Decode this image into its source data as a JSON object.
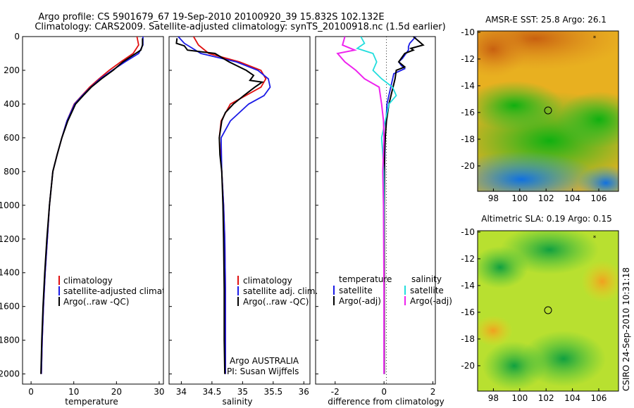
{
  "title": {
    "line1": "Argo profile: CS 5901679_67 19-Sep-2010 20100920_39 15.832S 102.132E",
    "line2": "Climatology: CARS2009. Satellite-adjusted climatology: synTS_20100918.nc (1.5d earlier)"
  },
  "colors": {
    "climatology": "#e01010",
    "satellite": "#1a1ae6",
    "argo": "#000000",
    "sal_satellite": "#22dddd",
    "sal_argo": "#ee22ee"
  },
  "depth_axis": {
    "ticks": [
      0,
      200,
      400,
      600,
      800,
      1000,
      1200,
      1400,
      1600,
      1800,
      2000
    ],
    "range": [
      0,
      2060
    ]
  },
  "temperature_panel": {
    "xlabel": "temperature",
    "xrange": [
      -2,
      31
    ],
    "xticks": [
      0,
      10,
      20,
      30
    ],
    "legend": [
      "climatology",
      "satellite-adjusted climatology",
      "Argo(..raw -QC)"
    ]
  },
  "salinity_panel": {
    "xlabel": "salinity",
    "xrange": [
      33.8,
      36.1
    ],
    "xticks": [
      34,
      34.5,
      35,
      35.5,
      36
    ],
    "legend": [
      "climatology",
      "satellite adj. clim.",
      "Argo(..raw -QC)"
    ],
    "note_line1": "Argo AUSTRALIA",
    "note_line2": "PI: Susan Wijffels"
  },
  "difference_panel": {
    "xlabel": "difference from climatology",
    "xrange": [
      -2.8,
      2.1
    ],
    "xticks": [
      -2,
      0,
      2
    ],
    "legend_head_left": "temperature",
    "legend_head_right": "salinity",
    "legend_left": [
      "satellite",
      "Argo(-adj)"
    ],
    "legend_right": [
      "satellite",
      "Argo(-adj)"
    ]
  },
  "chart_data": [
    {
      "type": "line",
      "title": "",
      "xlabel": "temperature",
      "ylabel": "",
      "xlim": [
        -2,
        31
      ],
      "ylim": [
        2060,
        0
      ],
      "series": [
        {
          "name": "climatology",
          "x": [
            24.8,
            25.2,
            23.9,
            21,
            18.3,
            15.9,
            13.7,
            11.9,
            10.1,
            8.4,
            7.2,
            6.1,
            5.1,
            4.3,
            3.8,
            3.3,
            2.9,
            2.6,
            2.4
          ],
          "y": [
            0,
            50,
            100,
            150,
            200,
            250,
            300,
            350,
            400,
            500,
            600,
            700,
            800,
            1000,
            1200,
            1400,
            1600,
            1800,
            2000
          ]
        },
        {
          "name": "satellite-adjusted climatology",
          "x": [
            26.2,
            26.2,
            25.2,
            22,
            19,
            16.2,
            14,
            12,
            10.2,
            8.4,
            7.2,
            6.1,
            5.1,
            4.3,
            3.8,
            3.3,
            2.9,
            2.6,
            2.4
          ],
          "y": [
            0,
            50,
            100,
            150,
            200,
            250,
            300,
            350,
            400,
            500,
            600,
            700,
            800,
            1000,
            1200,
            1400,
            1600,
            1800,
            2000
          ]
        },
        {
          "name": "Argo(..raw -QC)",
          "x": [
            26.1,
            26.1,
            25.7,
            21.5,
            19.2,
            16.5,
            14.1,
            12.2,
            10.4,
            8.6,
            7.2,
            6.1,
            5.1,
            4.3,
            3.7,
            3.2,
            2.8,
            2.5,
            2.3
          ],
          "y": [
            10,
            50,
            80,
            150,
            200,
            250,
            300,
            350,
            400,
            500,
            600,
            700,
            800,
            1000,
            1200,
            1400,
            1600,
            1800,
            2000
          ]
        }
      ]
    },
    {
      "type": "line",
      "title": "",
      "xlabel": "salinity",
      "ylabel": "",
      "xlim": [
        33.8,
        36.1
      ],
      "ylim": [
        2060,
        0
      ],
      "series": [
        {
          "name": "climatology",
          "x": [
            34.2,
            34.28,
            34.45,
            34.95,
            35.3,
            35.38,
            35.3,
            35.05,
            34.8,
            34.65,
            34.62,
            34.66,
            34.69,
            34.71,
            34.72,
            34.72,
            34.72
          ],
          "y": [
            0,
            50,
            100,
            150,
            200,
            250,
            300,
            350,
            400,
            500,
            600,
            800,
            1000,
            1200,
            1500,
            1800,
            2000
          ]
        },
        {
          "name": "satellite adj. clim.",
          "x": [
            33.95,
            34.05,
            34.32,
            34.9,
            35.25,
            35.42,
            35.45,
            35.35,
            35.1,
            34.8,
            34.65,
            34.66,
            34.69,
            34.71,
            34.72,
            34.72,
            34.72
          ],
          "y": [
            0,
            40,
            100,
            150,
            200,
            250,
            300,
            350,
            400,
            500,
            600,
            800,
            1000,
            1200,
            1500,
            1800,
            2000
          ]
        },
        {
          "name": "Argo(..raw -QC)",
          "x": [
            33.93,
            33.92,
            34.05,
            34.1,
            34.55,
            34.78,
            35.06,
            35.18,
            35.12,
            35.32,
            35.2,
            35.02,
            34.85,
            34.72,
            34.66,
            34.62,
            34.63,
            34.66,
            34.68,
            34.69,
            34.7,
            34.7,
            34.71
          ],
          "y": [
            10,
            40,
            55,
            80,
            100,
            150,
            200,
            230,
            260,
            270,
            300,
            350,
            400,
            450,
            500,
            600,
            700,
            800,
            1000,
            1200,
            1500,
            1800,
            2000
          ]
        }
      ]
    },
    {
      "type": "line",
      "title": "",
      "xlabel": "difference from climatology",
      "ylabel": "",
      "xlim": [
        -2.8,
        2.1
      ],
      "ylim": [
        2060,
        0
      ],
      "series": [
        {
          "name": "temperature satellite",
          "x": [
            1.3,
            1.05,
            1.0,
            1.0,
            0.75,
            0.6,
            0.7,
            0.85,
            0.4,
            0.12,
            0.05,
            0.02,
            0.01,
            0.01,
            0.01,
            0.01,
            0.01
          ],
          "y": [
            0,
            40,
            60,
            80,
            130,
            150,
            170,
            190,
            220,
            400,
            600,
            800,
            1000,
            1200,
            1500,
            1800,
            2000
          ]
        },
        {
          "name": "temperature Argo(-adj)",
          "x": [
            1.2,
            1.6,
            1.1,
            1.2,
            0.85,
            0.6,
            0.85,
            0.5,
            0.45,
            0.2,
            0.1,
            0.05,
            0.02,
            0.02,
            0.01,
            0.01,
            0.01,
            0.01,
            0.01
          ],
          "y": [
            0,
            50,
            70,
            80,
            100,
            150,
            180,
            200,
            250,
            400,
            500,
            600,
            700,
            800,
            1000,
            1200,
            1500,
            1800,
            2000
          ]
        },
        {
          "name": "salinity satellite",
          "x": [
            -0.95,
            -0.8,
            -1.1,
            -0.45,
            -0.3,
            -0.45,
            -0.1,
            0.35,
            0.5,
            0.2,
            0.05,
            -0.1,
            -0.05,
            -0.01,
            0.0,
            0.0,
            0.0
          ],
          "y": [
            0,
            40,
            70,
            100,
            150,
            200,
            250,
            300,
            350,
            400,
            500,
            600,
            700,
            800,
            1000,
            1500,
            2000
          ]
        },
        {
          "name": "salinity Argo(-adj)",
          "x": [
            -1.6,
            -1.7,
            -1.2,
            -1.9,
            -1.6,
            -1.15,
            -0.8,
            -0.2,
            -0.1,
            -0.02,
            0.0,
            -0.05,
            -0.02,
            0.0,
            0.0
          ],
          "y": [
            0,
            50,
            80,
            100,
            150,
            200,
            250,
            300,
            400,
            500,
            600,
            800,
            1000,
            1500,
            2000
          ]
        }
      ]
    },
    {
      "type": "heatmap",
      "title": "AMSR-E SST: 25.8 Argo: 26.1",
      "xlabel": "",
      "ylabel": "",
      "xlim": [
        96.8,
        107.5
      ],
      "ylim": [
        -21.9,
        -9.9
      ],
      "xticks": [
        98,
        100,
        102,
        104,
        106
      ],
      "yticks": [
        -10,
        -12,
        -14,
        -16,
        -18,
        -20
      ],
      "marker": {
        "lon": 102.132,
        "lat": -15.832
      }
    },
    {
      "type": "heatmap",
      "title": "Altimetric SLA: 0.19 Argo: 0.15",
      "xlabel": "",
      "ylabel": "",
      "xlim": [
        96.8,
        107.5
      ],
      "ylim": [
        -21.9,
        -9.9
      ],
      "xticks": [
        98,
        100,
        102,
        104,
        106
      ],
      "yticks": [
        -10,
        -12,
        -14,
        -16,
        -18,
        -20
      ],
      "marker": {
        "lon": 102.132,
        "lat": -15.832
      }
    }
  ],
  "sst_map": {
    "title": "AMSR-E SST: 25.8 Argo: 26.1"
  },
  "sla_map": {
    "title": "Altimetric SLA: 0.19 Argo: 0.15"
  },
  "credit": "CSIRO 24-Sep-2010 10:31:18"
}
